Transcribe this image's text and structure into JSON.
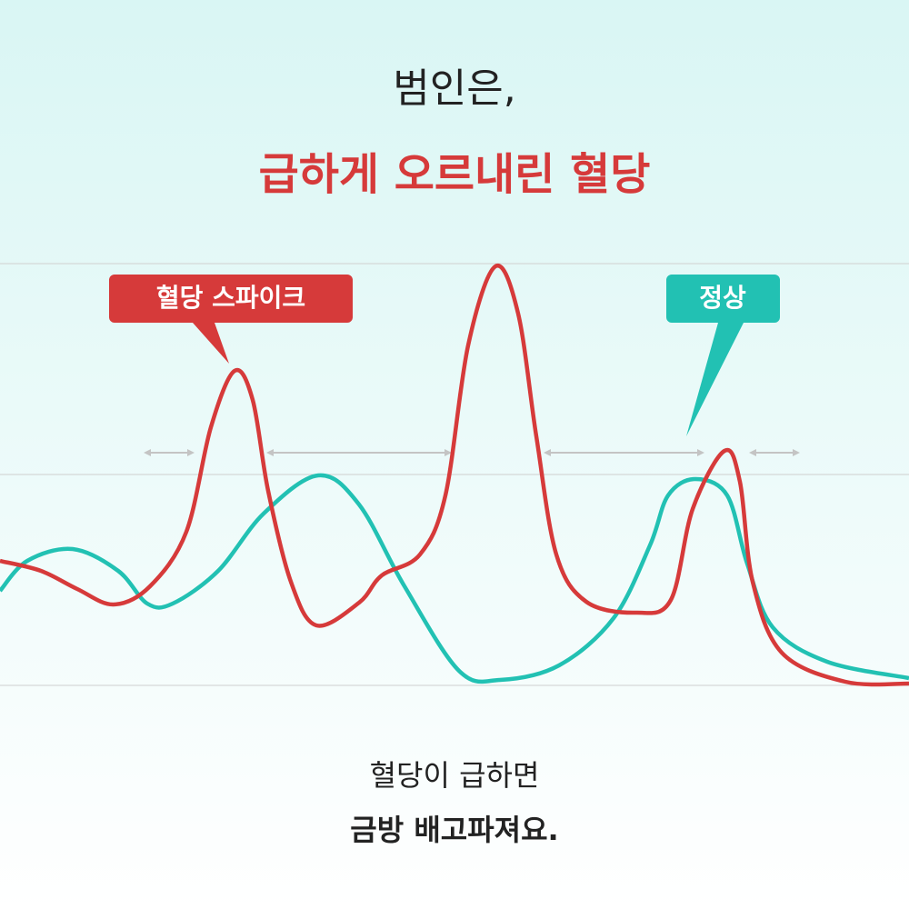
{
  "header": {
    "line1": "범인은,",
    "line2": "급하게 오르내린 혈당"
  },
  "labels": {
    "spike": "혈당 스파이크",
    "normal": "정상"
  },
  "footer": {
    "line1": "혈당이 급하면",
    "line2": "금방 배고파져요."
  }
}
